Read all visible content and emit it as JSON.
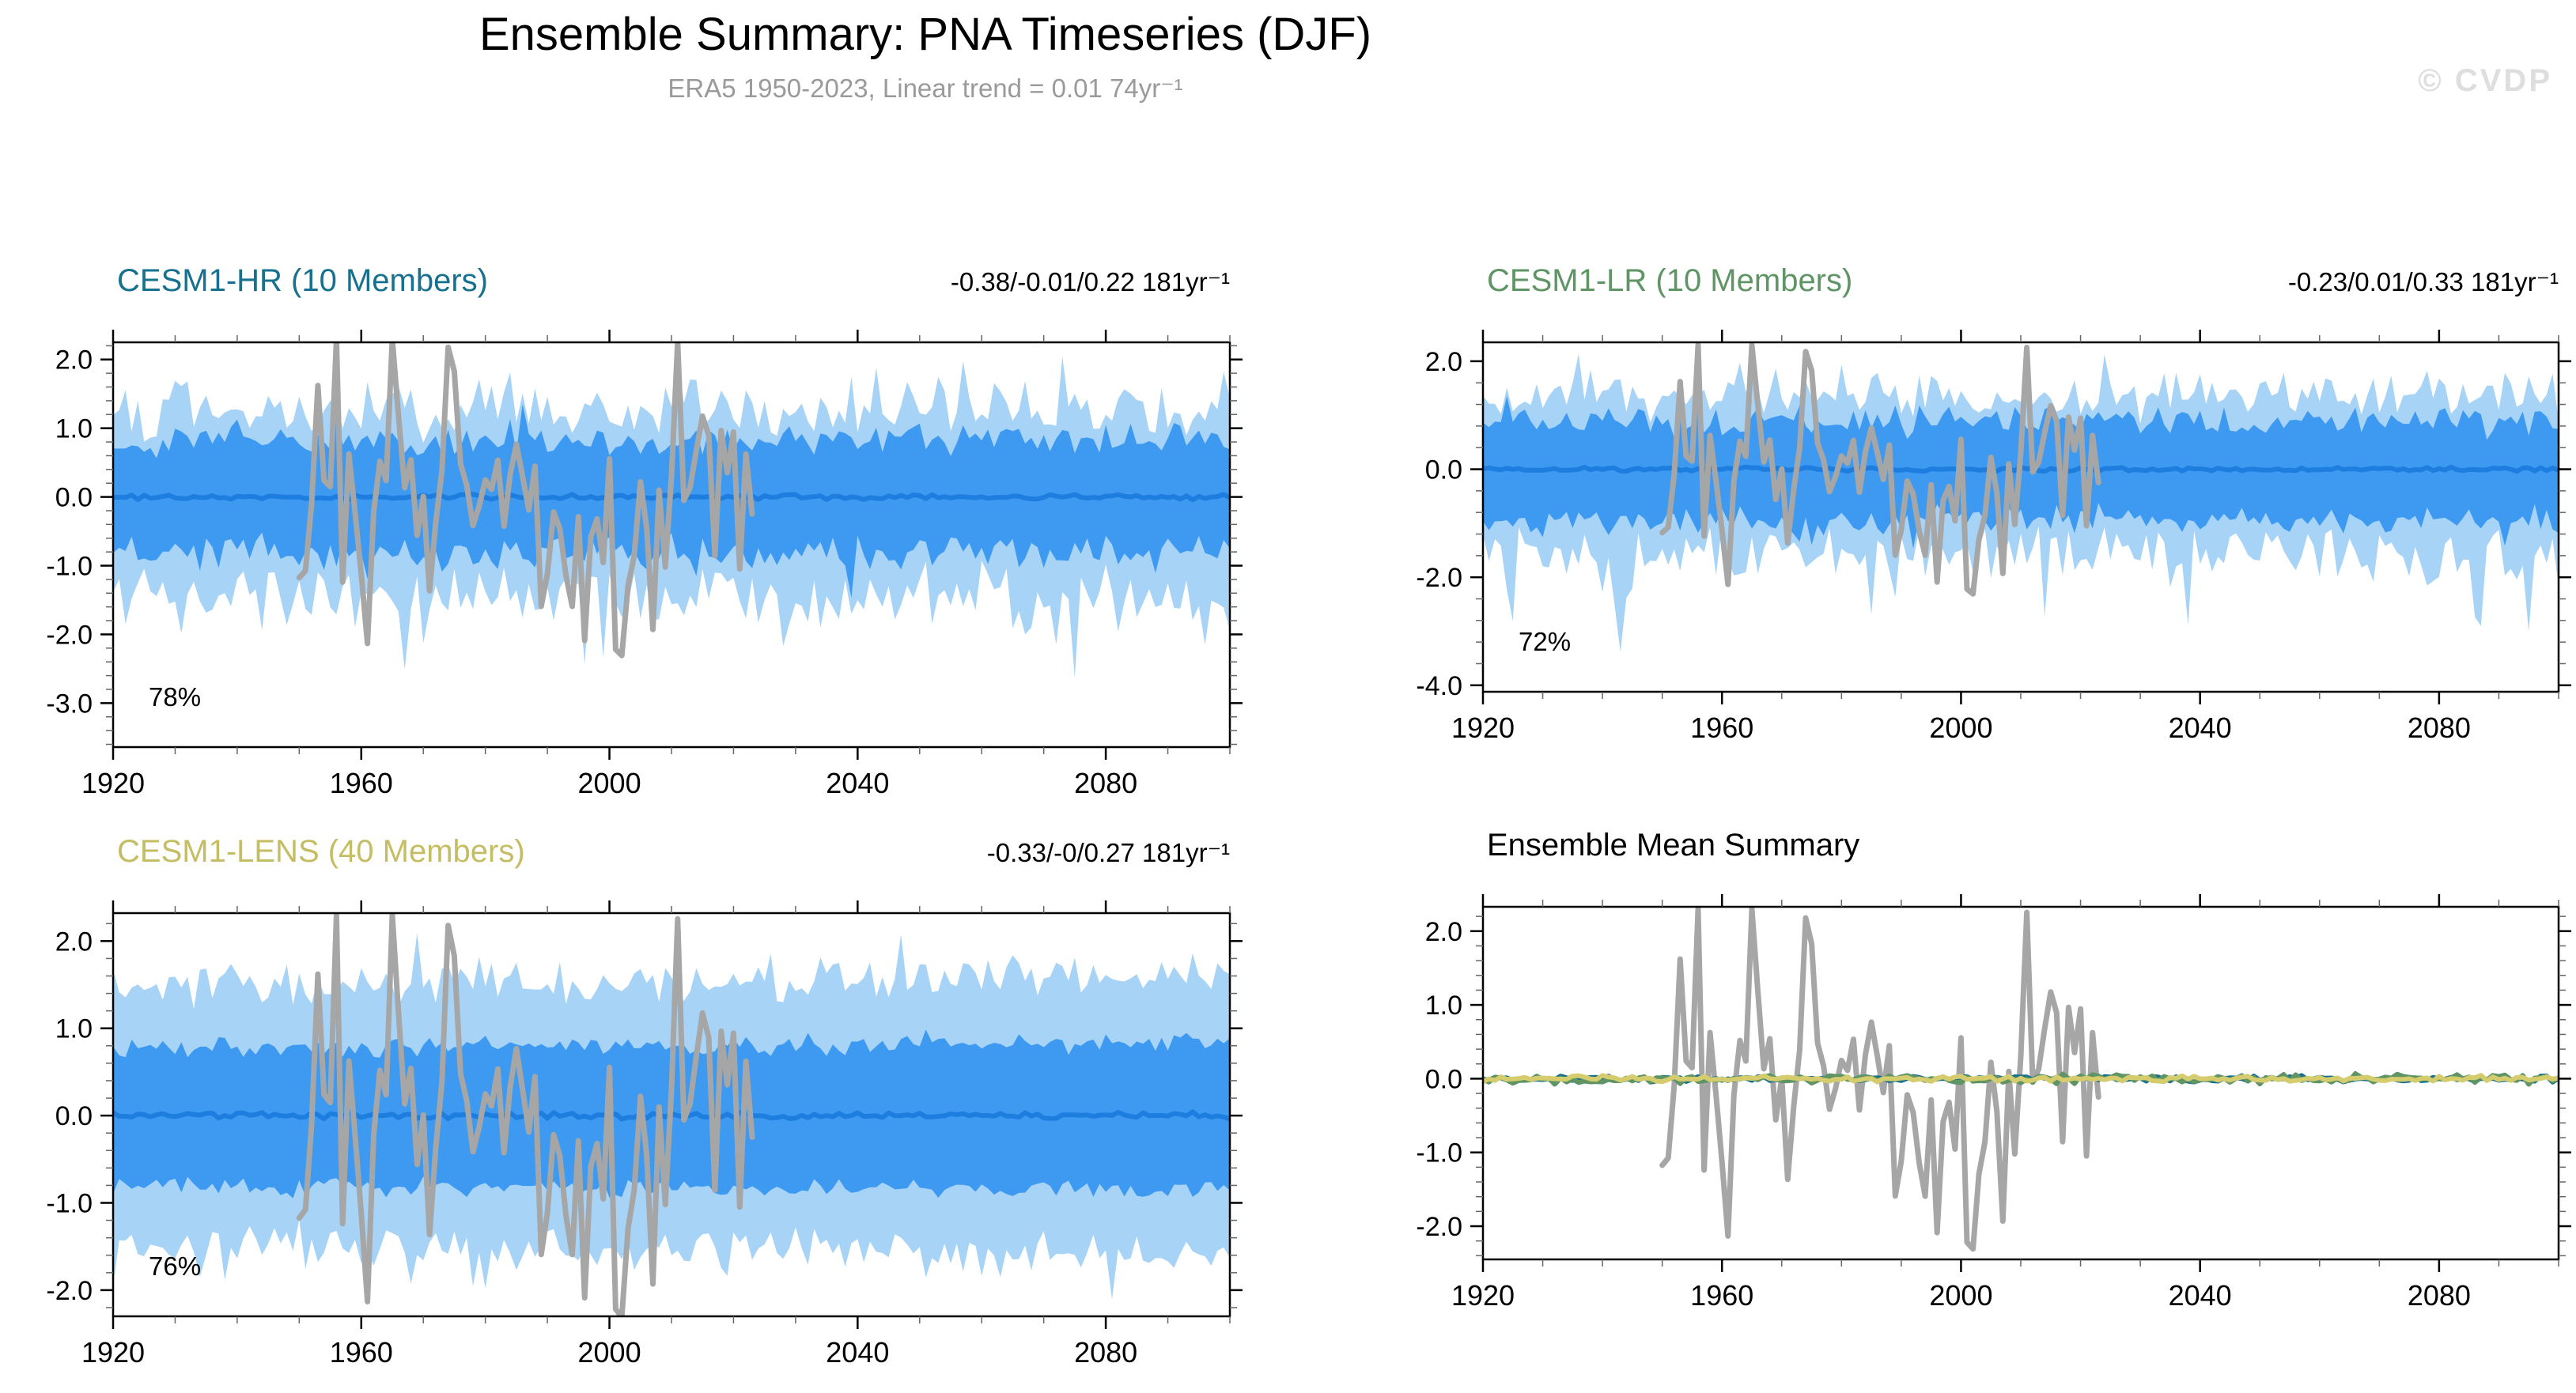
{
  "page": {
    "title": "Ensemble Summary: PNA Timeseries (DJF)",
    "subtitle": "ERA5 1950-2023, Linear trend = 0.01 74yr⁻¹",
    "watermark": "© CVDP"
  },
  "chart_data": {
    "type": "ensemble_timeseries",
    "title": "Ensemble Summary: PNA Timeseries (DJF)",
    "subtitle": "ERA5 1950-2023, Linear trend = 0.01 74yr⁻¹",
    "grid": false,
    "x_axis": {
      "range": [
        1920,
        2100
      ],
      "major_ticks": [
        1920,
        1960,
        2000,
        2040,
        2080
      ],
      "minor_step": 10
    },
    "observation": {
      "label": "ERA5",
      "years": [
        1950,
        2023
      ],
      "color": "#a6a6a6",
      "seed": 777,
      "value_range": [
        -2.6,
        2.3
      ]
    },
    "band_colors": {
      "outer": "#a7d3f7",
      "inner": "#3e9af0",
      "mean": "#1d7ee0"
    },
    "panels": [
      {
        "id": "cesm1-hr",
        "title": "CESM1-HR (10 Members)",
        "title_color": "#16708e",
        "trend_label": "-0.38/-0.01/0.22 181yr⁻¹",
        "percent_label": "78%",
        "ylim": [
          -3.64,
          2.25
        ],
        "y_major_ticks": [
          2.0,
          1.0,
          0.0,
          -1.0,
          -2.0,
          -3.0
        ],
        "y_minor_step": 0.2,
        "has_bands": true,
        "seed": 101,
        "gen": {
          "outer_top": [
            1.25,
            0.55,
            0.1,
            0.85,
            0.05
          ],
          "outer_bot": [
            -1.4,
            0.6,
            0.1,
            -1.35,
            -0.08
          ],
          "inner_top": [
            0.78,
            0.3,
            0.06,
            0.35,
            0.04
          ],
          "inner_bot": [
            -0.8,
            0.32,
            0.06,
            -0.4,
            -0.04
          ]
        }
      },
      {
        "id": "cesm1-lr",
        "title": "CESM1-LR (10 Members)",
        "title_color": "#5f9464",
        "trend_label": "-0.23/0.01/0.33 181yr⁻¹",
        "percent_label": "72%",
        "ylim": [
          -4.12,
          2.35
        ],
        "y_major_ticks": [
          2.0,
          0.0,
          -2.0,
          -4.0
        ],
        "y_minor_step": 0.4,
        "has_bands": true,
        "seed": 202,
        "gen": {
          "outer_top": [
            1.3,
            0.6,
            0.08,
            0.9,
            0.0
          ],
          "outer_bot": [
            -1.5,
            0.65,
            0.1,
            -1.7,
            -0.1
          ],
          "inner_top": [
            0.88,
            0.34,
            0.05,
            0.45,
            0.0
          ],
          "inner_bot": [
            -0.92,
            0.36,
            0.05,
            -0.5,
            0.0
          ]
        }
      },
      {
        "id": "cesm1-lens",
        "title": "CESM1-LENS (40 Members)",
        "title_color": "#c5bd63",
        "trend_label": "-0.33/-0/0.27 181yr⁻¹",
        "percent_label": "76%",
        "ylim": [
          -2.3,
          2.32
        ],
        "y_major_ticks": [
          2.0,
          1.0,
          0.0,
          -1.0,
          -2.0
        ],
        "y_minor_step": 0.2,
        "has_bands": true,
        "seed": 303,
        "gen": {
          "outer_top": [
            1.45,
            0.3,
            0.05,
            0.5,
            0.15
          ],
          "outer_bot": [
            -1.45,
            0.32,
            0.05,
            -0.55,
            -0.18
          ],
          "inner_top": [
            0.78,
            0.14,
            0.03,
            0.2,
            0.05
          ],
          "inner_bot": [
            -0.8,
            0.14,
            0.03,
            -0.2,
            -0.05
          ]
        }
      },
      {
        "id": "ensemble-mean-summary",
        "title": "Ensemble Mean Summary",
        "title_color": "#000000",
        "ylim": [
          -2.45,
          2.33
        ],
        "y_major_ticks": [
          2.0,
          1.0,
          0.0,
          -1.0,
          -2.0
        ],
        "y_minor_step": 0.2,
        "has_bands": false,
        "seed": 404,
        "summary_series": [
          {
            "name": "CESM1-HR",
            "color": "#16708e",
            "seed": 21,
            "amp": 0.05
          },
          {
            "name": "CESM1-LR",
            "color": "#5f9464",
            "seed": 22,
            "amp": 0.08
          },
          {
            "name": "CESM1-LENS",
            "color": "#d5cc6e",
            "seed": 23,
            "amp": 0.05
          }
        ]
      }
    ]
  }
}
